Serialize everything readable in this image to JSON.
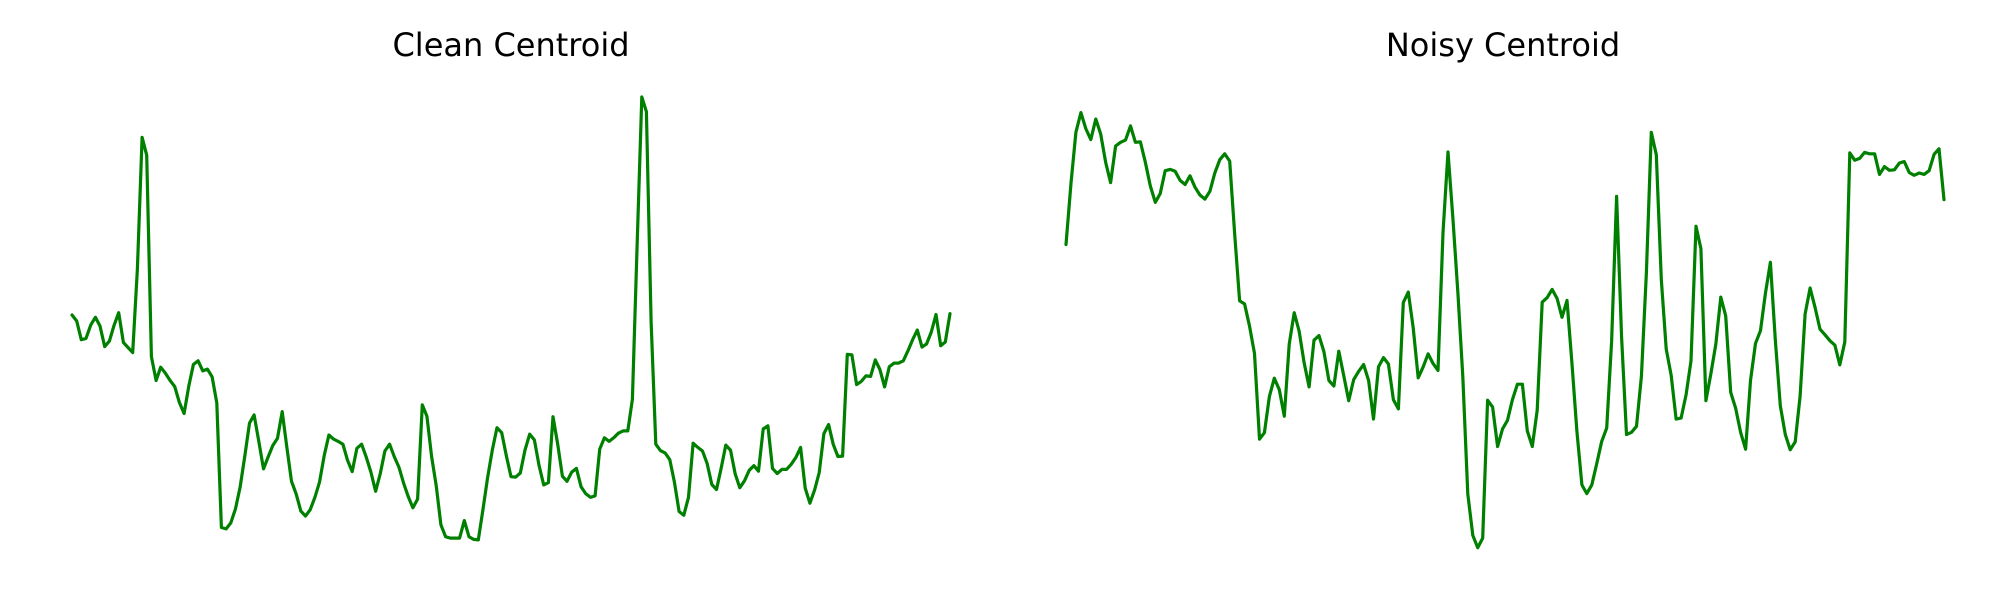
{
  "line_color": "#008000",
  "chart_data": [
    {
      "type": "line",
      "title": "Clean Centroid",
      "xlabel": "",
      "ylabel": "",
      "grid": false,
      "axes_visible": false,
      "ylim": [
        0,
        1
      ],
      "series": [
        {
          "values": [
            0.524,
            0.511,
            0.47,
            0.473,
            0.502,
            0.519,
            0.5,
            0.455,
            0.467,
            0.501,
            0.529,
            0.464,
            0.453,
            0.442,
            0.625,
            0.912,
            0.873,
            0.433,
            0.381,
            0.41,
            0.397,
            0.381,
            0.368,
            0.333,
            0.309,
            0.369,
            0.416,
            0.424,
            0.402,
            0.406,
            0.389,
            0.332,
            0.06,
            0.057,
            0.07,
            0.101,
            0.148,
            0.216,
            0.288,
            0.306,
            0.248,
            0.188,
            0.214,
            0.239,
            0.255,
            0.313,
            0.236,
            0.161,
            0.133,
            0.096,
            0.085,
            0.099,
            0.126,
            0.159,
            0.217,
            0.262,
            0.253,
            0.248,
            0.242,
            0.207,
            0.182,
            0.233,
            0.242,
            0.214,
            0.181,
            0.139,
            0.177,
            0.227,
            0.242,
            0.215,
            0.192,
            0.157,
            0.127,
            0.103,
            0.122,
            0.328,
            0.303,
            0.215,
            0.15,
            0.066,
            0.04,
            0.037,
            0.037,
            0.037,
            0.075,
            0.04,
            0.034,
            0.033,
            0.1,
            0.169,
            0.229,
            0.278,
            0.267,
            0.217,
            0.171,
            0.17,
            0.179,
            0.229,
            0.264,
            0.251,
            0.196,
            0.153,
            0.158,
            0.302,
            0.242,
            0.172,
            0.161,
            0.181,
            0.189,
            0.149,
            0.134,
            0.126,
            0.129,
            0.231,
            0.256,
            0.248,
            0.256,
            0.266,
            0.271,
            0.271,
            0.34,
            0.675,
            1.0,
            0.968,
            0.51,
            0.242,
            0.228,
            0.223,
            0.208,
            0.158,
            0.095,
            0.087,
            0.126,
            0.244,
            0.235,
            0.227,
            0.2,
            0.154,
            0.143,
            0.19,
            0.24,
            0.229,
            0.177,
            0.147,
            0.162,
            0.185,
            0.195,
            0.183,
            0.275,
            0.282,
            0.189,
            0.178,
            0.187,
            0.187,
            0.198,
            0.213,
            0.235,
            0.146,
            0.113,
            0.142,
            0.18,
            0.265,
            0.285,
            0.242,
            0.215,
            0.216,
            0.438,
            0.437,
            0.372,
            0.379,
            0.391,
            0.39,
            0.426,
            0.405,
            0.367,
            0.411,
            0.419,
            0.419,
            0.424,
            0.446,
            0.47,
            0.491,
            0.454,
            0.461,
            0.487,
            0.525,
            0.457,
            0.465,
            0.527
          ]
        }
      ]
    },
    {
      "type": "line",
      "title": "Noisy Centroid",
      "xlabel": "",
      "ylabel": "",
      "grid": false,
      "axes_visible": false,
      "ylim": [
        0,
        1
      ],
      "series": [
        {
          "values": [
            0.678,
            0.812,
            0.923,
            0.966,
            0.931,
            0.907,
            0.952,
            0.919,
            0.857,
            0.813,
            0.893,
            0.901,
            0.906,
            0.937,
            0.901,
            0.902,
            0.857,
            0.806,
            0.77,
            0.789,
            0.839,
            0.842,
            0.838,
            0.818,
            0.809,
            0.828,
            0.803,
            0.786,
            0.777,
            0.794,
            0.834,
            0.863,
            0.876,
            0.86,
            0.7,
            0.555,
            0.548,
            0.5,
            0.44,
            0.253,
            0.267,
            0.346,
            0.386,
            0.361,
            0.303,
            0.46,
            0.529,
            0.489,
            0.42,
            0.367,
            0.469,
            0.479,
            0.444,
            0.381,
            0.369,
            0.445,
            0.391,
            0.337,
            0.383,
            0.401,
            0.416,
            0.381,
            0.297,
            0.411,
            0.431,
            0.417,
            0.339,
            0.319,
            0.551,
            0.574,
            0.496,
            0.387,
            0.411,
            0.439,
            0.418,
            0.403,
            0.704,
            0.88,
            0.735,
            0.572,
            0.39,
            0.133,
            0.043,
            0.016,
            0.037,
            0.338,
            0.323,
            0.237,
            0.275,
            0.294,
            0.339,
            0.373,
            0.373,
            0.271,
            0.237,
            0.316,
            0.552,
            0.562,
            0.58,
            0.56,
            0.519,
            0.556,
            0.417,
            0.27,
            0.153,
            0.134,
            0.153,
            0.2,
            0.248,
            0.277,
            0.466,
            0.783,
            0.475,
            0.263,
            0.268,
            0.281,
            0.39,
            0.617,
            0.923,
            0.874,
            0.602,
            0.45,
            0.392,
            0.297,
            0.299,
            0.35,
            0.424,
            0.718,
            0.669,
            0.337,
            0.396,
            0.46,
            0.563,
            0.522,
            0.355,
            0.32,
            0.268,
            0.231,
            0.381,
            0.462,
            0.49,
            0.571,
            0.639,
            0.47,
            0.326,
            0.263,
            0.23,
            0.247,
            0.347,
            0.526,
            0.583,
            0.541,
            0.493,
            0.481,
            0.468,
            0.458,
            0.415,
            0.465,
            0.878,
            0.862,
            0.866,
            0.879,
            0.876,
            0.876,
            0.831,
            0.848,
            0.84,
            0.841,
            0.856,
            0.859,
            0.835,
            0.829,
            0.834,
            0.831,
            0.839,
            0.875,
            0.887,
            0.776
          ]
        }
      ]
    }
  ]
}
